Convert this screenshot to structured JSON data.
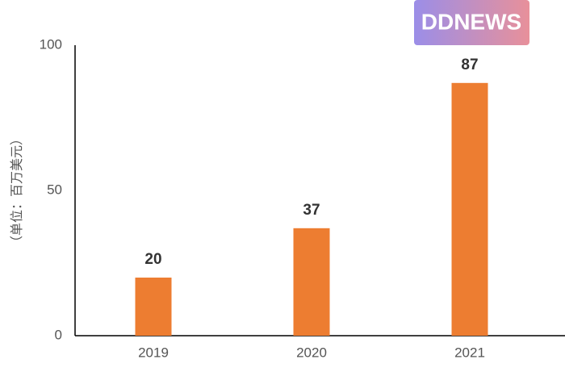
{
  "watermark": "DDNEWS",
  "chart_data": {
    "type": "bar",
    "y_label": "（单位：百万美元）",
    "categories": [
      "2019",
      "2020",
      "2021"
    ],
    "values": [
      20,
      37,
      87
    ],
    "color": "#ed7d31",
    "ylim": [
      0,
      100
    ],
    "yticks": [
      0,
      50,
      100
    ],
    "value_labels_shown": true
  }
}
